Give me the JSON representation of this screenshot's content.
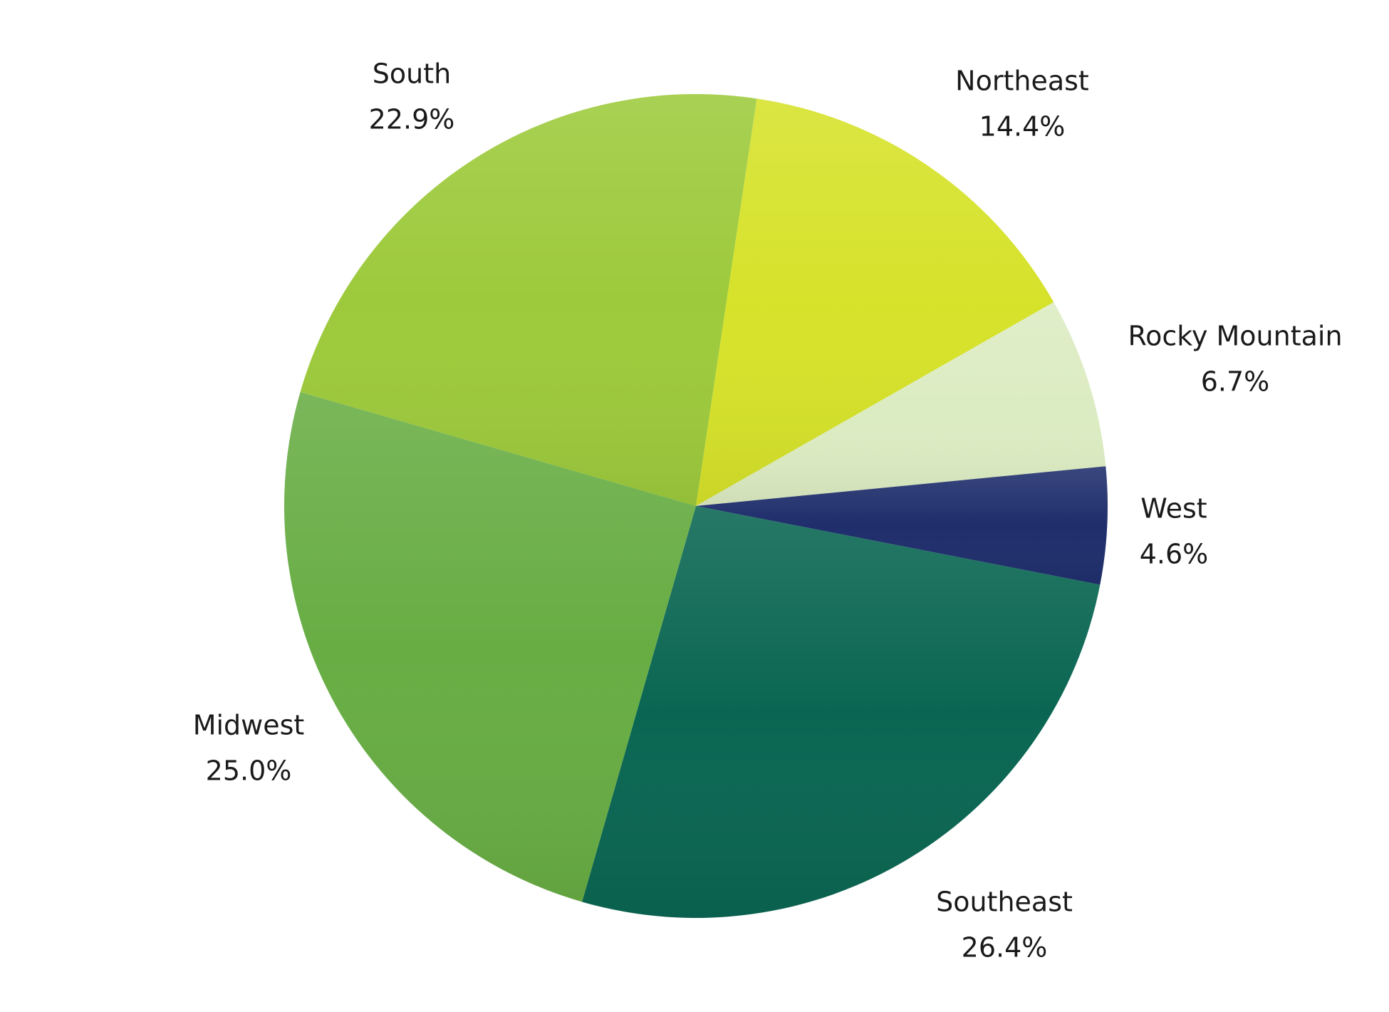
{
  "chart_data": {
    "type": "pie",
    "categories": [
      "Northeast",
      "Rocky Mountain",
      "West",
      "Southeast",
      "Midwest",
      "South"
    ],
    "values": [
      14.4,
      6.7,
      4.6,
      26.4,
      25.0,
      22.9
    ],
    "value_labels": [
      "14.4%",
      "6.7%",
      "4.6%",
      "26.4%",
      "25.0%",
      "22.9%"
    ],
    "colors": [
      "#d6e22a",
      "#dcecc2",
      "#1f2e6c",
      "#0a6652",
      "#68ad44",
      "#9dca3c"
    ]
  }
}
